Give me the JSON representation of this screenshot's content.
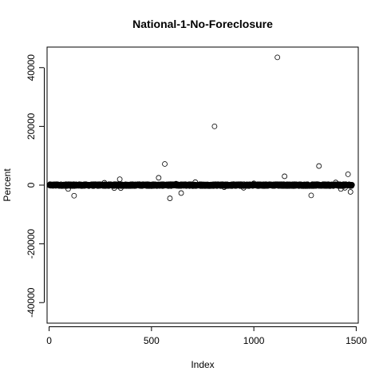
{
  "chart_data": {
    "type": "scatter",
    "title": "National-1-No-Foreclosure",
    "xlabel": "Index",
    "ylabel": "Percent",
    "xlim": [
      -10,
      1510
    ],
    "ylim": [
      -47000,
      47000
    ],
    "xticks": [
      0,
      500,
      1000,
      1500
    ],
    "yticks": [
      -40000,
      -20000,
      0,
      20000,
      40000
    ],
    "xtick_labels": [
      "0",
      "500",
      "1000",
      "1500"
    ],
    "ytick_labels": [
      "-40000",
      "-20000",
      "0",
      "20000",
      "40000"
    ],
    "grid": false,
    "legend": "none",
    "band": {
      "description_n": 1480,
      "x_start": 1,
      "x_end": 1480,
      "y_spread": 350
    },
    "points": [
      {
        "x": 93,
        "y": -1300
      },
      {
        "x": 122,
        "y": -3600
      },
      {
        "x": 270,
        "y": 800
      },
      {
        "x": 318,
        "y": -1000
      },
      {
        "x": 345,
        "y": 2000
      },
      {
        "x": 350,
        "y": -1000
      },
      {
        "x": 535,
        "y": 2500
      },
      {
        "x": 565,
        "y": 7200
      },
      {
        "x": 590,
        "y": -4500
      },
      {
        "x": 620,
        "y": 500
      },
      {
        "x": 645,
        "y": -2700
      },
      {
        "x": 714,
        "y": 1000
      },
      {
        "x": 808,
        "y": 20000
      },
      {
        "x": 855,
        "y": -700
      },
      {
        "x": 950,
        "y": -900
      },
      {
        "x": 1000,
        "y": 600
      },
      {
        "x": 1115,
        "y": 43500
      },
      {
        "x": 1150,
        "y": 3000
      },
      {
        "x": 1280,
        "y": -3500
      },
      {
        "x": 1318,
        "y": 6500
      },
      {
        "x": 1400,
        "y": 900
      },
      {
        "x": 1425,
        "y": -1300
      },
      {
        "x": 1445,
        "y": -900
      },
      {
        "x": 1460,
        "y": 3700
      },
      {
        "x": 1472,
        "y": -2300
      }
    ]
  }
}
